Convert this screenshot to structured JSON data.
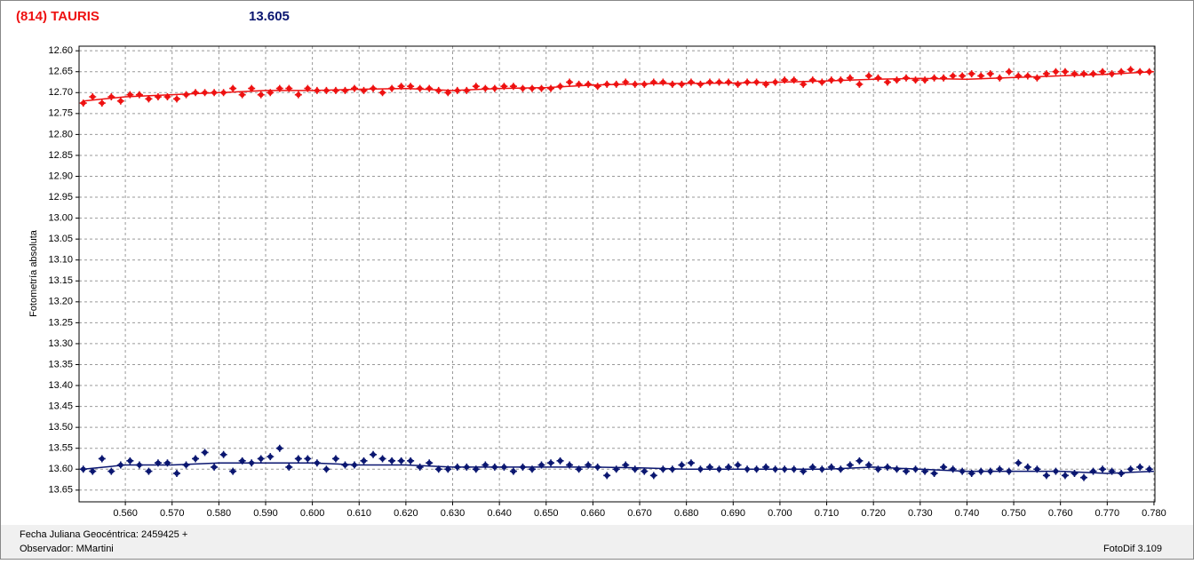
{
  "chart_data": {
    "type": "scatter",
    "title": "(814) TAURIS",
    "title_color": "#ee1111",
    "subtitle": "13.605",
    "subtitle_color": "#0a1670",
    "y_label": "Fotometría absoluta",
    "footer_lines": [
      "Fecha Juliana Geocéntrica: 2459425 +",
      "Observador: MMartini"
    ],
    "footer_right": "FotoDif 3.109",
    "xlim": [
      0.5501,
      0.7802
    ],
    "ylim": [
      12.589,
      13.678
    ],
    "y_inverted": true,
    "grid": true,
    "xticks": [
      {
        "value": 0.56,
        "label": "0.560"
      },
      {
        "value": 0.57,
        "label": "0.570"
      },
      {
        "value": 0.58,
        "label": "0.580"
      },
      {
        "value": 0.59,
        "label": "0.590"
      },
      {
        "value": 0.6,
        "label": "0.600"
      },
      {
        "value": 0.61,
        "label": "0.610"
      },
      {
        "value": 0.62,
        "label": "0.620"
      },
      {
        "value": 0.63,
        "label": "0.630"
      },
      {
        "value": 0.64,
        "label": "0.640"
      },
      {
        "value": 0.65,
        "label": "0.650"
      },
      {
        "value": 0.66,
        "label": "0.660"
      },
      {
        "value": 0.67,
        "label": "0.670"
      },
      {
        "value": 0.68,
        "label": "0.680"
      },
      {
        "value": 0.69,
        "label": "0.690"
      },
      {
        "value": 0.7,
        "label": "0.700"
      },
      {
        "value": 0.71,
        "label": "0.710"
      },
      {
        "value": 0.72,
        "label": "0.720"
      },
      {
        "value": 0.73,
        "label": "0.730"
      },
      {
        "value": 0.74,
        "label": "0.740"
      },
      {
        "value": 0.75,
        "label": "0.750"
      },
      {
        "value": 0.76,
        "label": "0.760"
      },
      {
        "value": 0.77,
        "label": "0.770"
      },
      {
        "value": 0.78,
        "label": "0.780"
      }
    ],
    "yticks": [
      {
        "value": 12.6,
        "label": "12.60"
      },
      12.65,
      {
        "value": 12.7,
        "label": "12.70"
      },
      12.75,
      {
        "value": 12.8,
        "label": "12.80"
      },
      12.85,
      {
        "value": 12.9,
        "label": "12.90"
      },
      12.95,
      {
        "value": 13,
        "label": "13.00"
      },
      13.05,
      {
        "value": 13.1,
        "label": "13.10"
      },
      13.15,
      {
        "value": 13.2,
        "label": "13.20"
      },
      13.25,
      {
        "value": 13.3,
        "label": "13.30"
      },
      13.35,
      {
        "value": 13.4,
        "label": "13.40"
      },
      13.45,
      {
        "value": 13.5,
        "label": "13.50"
      },
      13.55,
      {
        "value": 13.6,
        "label": "13.60"
      },
      13.65
    ],
    "x": [
      0.551,
      0.553,
      0.555,
      0.557,
      0.559,
      0.561,
      0.563,
      0.565,
      0.567,
      0.569,
      0.571,
      0.573,
      0.575,
      0.577,
      0.579,
      0.581,
      0.583,
      0.585,
      0.587,
      0.589,
      0.591,
      0.593,
      0.595,
      0.597,
      0.599,
      0.601,
      0.603,
      0.605,
      0.607,
      0.609,
      0.611,
      0.613,
      0.615,
      0.617,
      0.619,
      0.621,
      0.623,
      0.625,
      0.627,
      0.629,
      0.631,
      0.633,
      0.635,
      0.637,
      0.639,
      0.641,
      0.643,
      0.645,
      0.647,
      0.649,
      0.651,
      0.653,
      0.655,
      0.657,
      0.659,
      0.661,
      0.663,
      0.665,
      0.667,
      0.669,
      0.671,
      0.673,
      0.675,
      0.677,
      0.679,
      0.681,
      0.683,
      0.685,
      0.687,
      0.689,
      0.691,
      0.693,
      0.695,
      0.697,
      0.699,
      0.701,
      0.703,
      0.705,
      0.707,
      0.709,
      0.711,
      0.713,
      0.715,
      0.717,
      0.719,
      0.721,
      0.723,
      0.725,
      0.727,
      0.729,
      0.731,
      0.733,
      0.735,
      0.737,
      0.739,
      0.741,
      0.743,
      0.745,
      0.747,
      0.749,
      0.751,
      0.753,
      0.755,
      0.757,
      0.759,
      0.761,
      0.763,
      0.765,
      0.767,
      0.769,
      0.771,
      0.773,
      0.775,
      0.777,
      0.779
    ],
    "series": [
      {
        "color": "#ee1111",
        "mode": "markers",
        "values": [
          12.725,
          12.71,
          12.725,
          12.71,
          12.72,
          12.705,
          12.705,
          12.715,
          12.71,
          12.71,
          12.715,
          12.705,
          12.7,
          12.7,
          12.7,
          12.7,
          12.69,
          12.705,
          12.69,
          12.705,
          12.7,
          12.69,
          12.69,
          12.705,
          12.69,
          12.695,
          12.695,
          12.695,
          12.695,
          12.69,
          12.695,
          12.69,
          12.7,
          12.69,
          12.685,
          12.685,
          12.69,
          12.69,
          12.695,
          12.7,
          12.695,
          12.695,
          12.685,
          12.69,
          12.69,
          12.685,
          12.685,
          12.69,
          12.69,
          12.69,
          12.69,
          12.685,
          12.675,
          12.68,
          12.68,
          12.685,
          12.68,
          12.68,
          12.675,
          12.68,
          12.68,
          12.675,
          12.675,
          12.68,
          12.68,
          12.675,
          12.68,
          12.675,
          12.675,
          12.675,
          12.68,
          12.675,
          12.675,
          12.68,
          12.675,
          12.67,
          12.67,
          12.68,
          12.67,
          12.675,
          12.67,
          12.67,
          12.665,
          12.68,
          12.66,
          12.665,
          12.675,
          12.67,
          12.665,
          12.67,
          12.67,
          12.665,
          12.665,
          12.66,
          12.66,
          12.655,
          12.66,
          12.655,
          12.665,
          12.65,
          12.66,
          12.66,
          12.665,
          12.655,
          12.65,
          12.65,
          12.655,
          12.655,
          12.655,
          12.65,
          12.655,
          12.65,
          12.645,
          12.65,
          12.65
        ]
      },
      {
        "color": "#ee1111",
        "mode": "line",
        "x": [
          0.551,
          0.56,
          0.57,
          0.58,
          0.59,
          0.6,
          0.61,
          0.62,
          0.63,
          0.64,
          0.65,
          0.66,
          0.67,
          0.68,
          0.69,
          0.7,
          0.71,
          0.72,
          0.73,
          0.74,
          0.75,
          0.76,
          0.77,
          0.78
        ],
        "values": [
          12.72,
          12.71,
          12.705,
          12.7,
          12.695,
          12.695,
          12.692,
          12.69,
          12.695,
          12.69,
          12.688,
          12.682,
          12.679,
          12.678,
          12.677,
          12.675,
          12.672,
          12.668,
          12.666,
          12.668,
          12.664,
          12.66,
          12.656,
          12.65
        ]
      },
      {
        "color": "#0a1670",
        "mode": "markers",
        "values": [
          13.6,
          13.605,
          13.575,
          13.605,
          13.59,
          13.58,
          13.59,
          13.605,
          13.585,
          13.585,
          13.61,
          13.59,
          13.575,
          13.56,
          13.595,
          13.565,
          13.605,
          13.58,
          13.585,
          13.575,
          13.57,
          13.55,
          13.595,
          13.575,
          13.575,
          13.585,
          13.6,
          13.575,
          13.59,
          13.59,
          13.58,
          13.565,
          13.575,
          13.58,
          13.58,
          13.58,
          13.595,
          13.585,
          13.6,
          13.6,
          13.595,
          13.595,
          13.6,
          13.59,
          13.595,
          13.595,
          13.605,
          13.595,
          13.6,
          13.59,
          13.585,
          13.58,
          13.59,
          13.6,
          13.59,
          13.595,
          13.615,
          13.6,
          13.59,
          13.6,
          13.605,
          13.615,
          13.6,
          13.6,
          13.59,
          13.585,
          13.6,
          13.595,
          13.6,
          13.595,
          13.59,
          13.6,
          13.6,
          13.595,
          13.6,
          13.6,
          13.6,
          13.605,
          13.595,
          13.6,
          13.595,
          13.6,
          13.59,
          13.58,
          13.59,
          13.6,
          13.595,
          13.6,
          13.605,
          13.6,
          13.605,
          13.61,
          13.595,
          13.6,
          13.605,
          13.61,
          13.605,
          13.605,
          13.6,
          13.605,
          13.585,
          13.595,
          13.6,
          13.615,
          13.605,
          13.615,
          13.61,
          13.62,
          13.605,
          13.6,
          13.605,
          13.61,
          13.6,
          13.595,
          13.6
        ]
      },
      {
        "color": "#0a1670",
        "mode": "line",
        "x": [
          0.551,
          0.56,
          0.57,
          0.58,
          0.59,
          0.6,
          0.61,
          0.62,
          0.63,
          0.64,
          0.65,
          0.66,
          0.67,
          0.68,
          0.69,
          0.7,
          0.71,
          0.72,
          0.73,
          0.74,
          0.75,
          0.76,
          0.77,
          0.78
        ],
        "values": [
          13.6,
          13.59,
          13.59,
          13.585,
          13.585,
          13.585,
          13.59,
          13.59,
          13.595,
          13.595,
          13.595,
          13.595,
          13.597,
          13.6,
          13.6,
          13.6,
          13.6,
          13.595,
          13.6,
          13.605,
          13.605,
          13.605,
          13.61,
          13.605
        ]
      }
    ]
  }
}
